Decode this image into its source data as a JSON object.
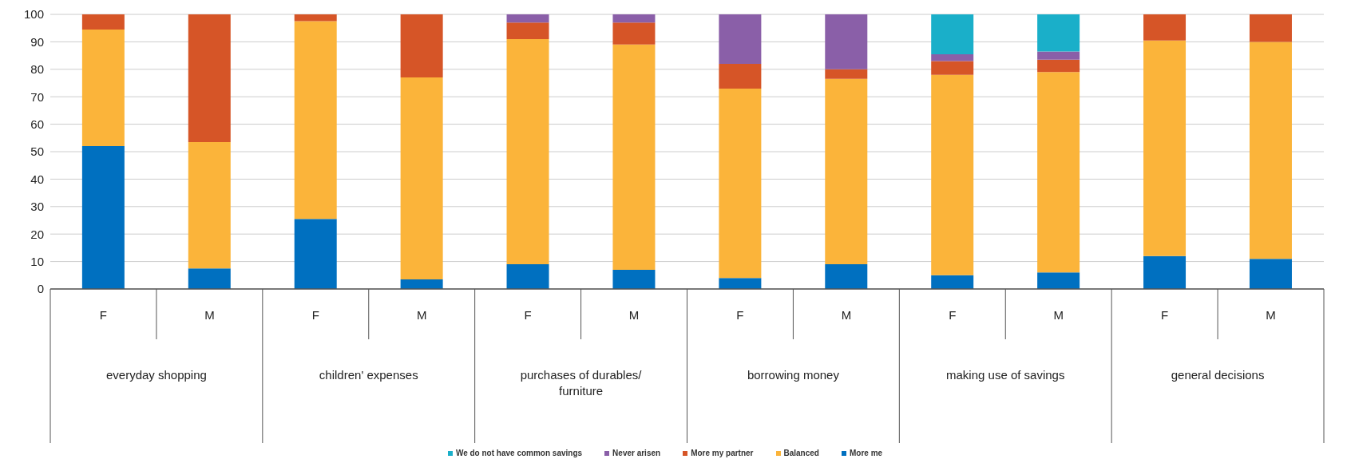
{
  "chart_data": {
    "type": "bar",
    "stacked": true,
    "categories": [
      "F",
      "M",
      "F",
      "M",
      "F",
      "M",
      "F",
      "M",
      "F",
      "M",
      "F",
      "M"
    ],
    "annotations": [
      "everyday shopping",
      "children' expenses",
      "purchases of durables/ furniture",
      "borrowing money",
      "making use of savings",
      "general decisions"
    ],
    "series": [
      {
        "name": "More me",
        "color": "#0070c0",
        "values": [
          52,
          7.5,
          25.5,
          3.5,
          9,
          7,
          4,
          9,
          5,
          6,
          12,
          11
        ]
      },
      {
        "name": "Balanced",
        "color": "#fbb43a",
        "values": [
          42.5,
          46,
          72,
          73.5,
          82,
          82,
          69,
          67.5,
          73,
          73,
          78.5,
          79
        ]
      },
      {
        "name": "More my partner",
        "color": "#d65527",
        "values": [
          5.5,
          46.5,
          2.5,
          23,
          6,
          8,
          9,
          3.5,
          5,
          4.5,
          9.5,
          10
        ]
      },
      {
        "name": "Never arisen",
        "color": "#8a5fa8",
        "values": [
          null,
          null,
          null,
          null,
          3,
          3,
          18,
          20,
          2.5,
          3,
          null,
          null
        ]
      },
      {
        "name": "We do not have common savings",
        "color": "#1aafc9",
        "values": [
          null,
          null,
          null,
          null,
          null,
          null,
          null,
          null,
          14.5,
          13.5,
          null,
          null
        ]
      }
    ],
    "ylim": [
      0,
      100
    ],
    "yticks": [
      0,
      10,
      20,
      30,
      40,
      50,
      60,
      70,
      80,
      90,
      100
    ],
    "grid": "y",
    "legend": "bottom"
  }
}
